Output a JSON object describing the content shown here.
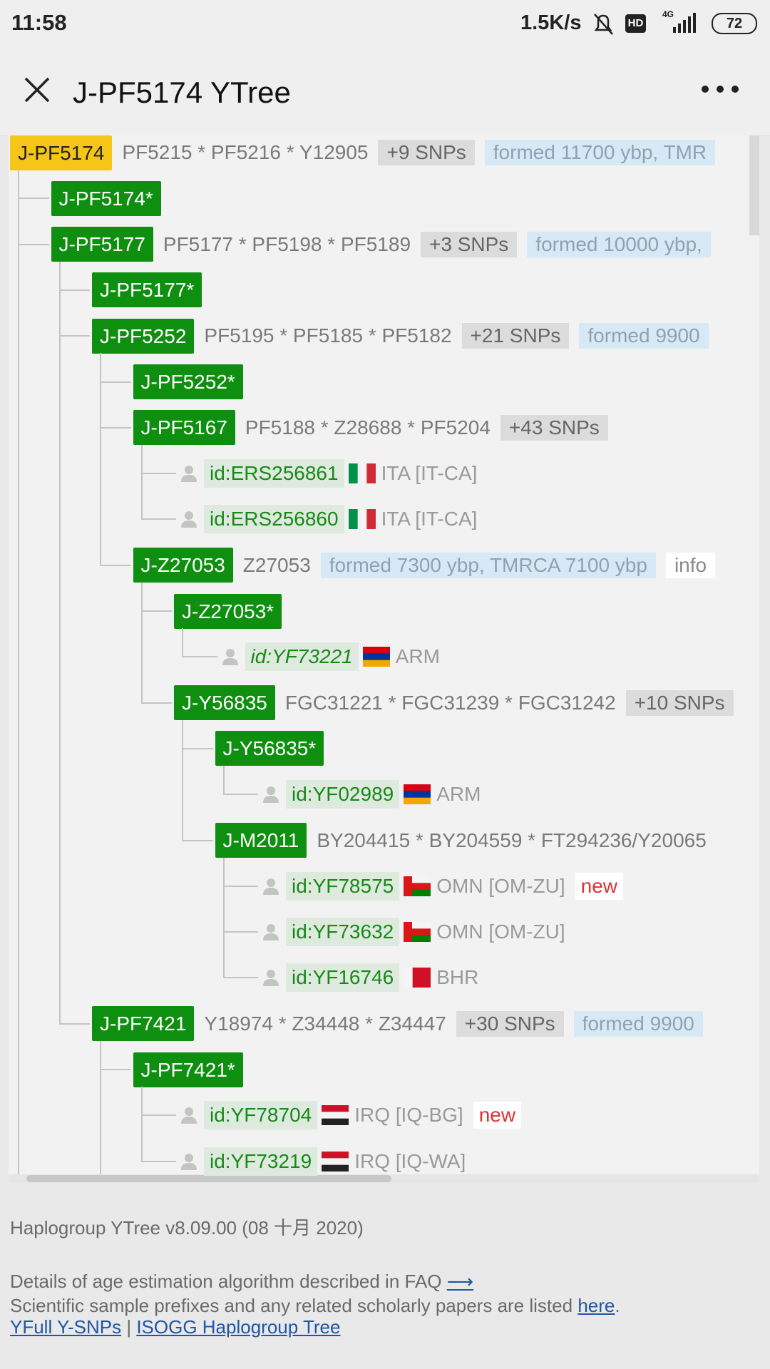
{
  "status_bar": {
    "time": "11:58",
    "speed": "1.5K/s",
    "hd": "HD",
    "network": "4G",
    "battery": "72"
  },
  "app_bar": {
    "title": "J-PF5174 YTree"
  },
  "tree": {
    "label": "J-PF5174",
    "highlight": true,
    "snps": "PF5215 * PF5216 * Y12905",
    "more": "+9 SNPs",
    "age": "formed 11700 ybp, TMR",
    "children": [
      {
        "label": "J-PF5174*"
      },
      {
        "label": "J-PF5177",
        "snps": "PF5177 * PF5198 * PF5189",
        "more": "+3 SNPs",
        "age": "formed 10000 ybp,",
        "children": [
          {
            "label": "J-PF5177*"
          },
          {
            "label": "J-PF5252",
            "snps": "PF5195 * PF5185 * PF5182",
            "more": "+21 SNPs",
            "age": "formed 9900",
            "children": [
              {
                "label": "J-PF5252*"
              },
              {
                "label": "J-PF5167",
                "snps": "PF5188 * Z28688 * PF5204",
                "more": "+43 SNPs",
                "children": [
                  {
                    "id": "id:ERS256861",
                    "flag": {
                      "dir": "v",
                      "colors": [
                        "#009246",
                        "#f4f4f4",
                        "#ce2b37"
                      ]
                    },
                    "country": "ITA [IT-CA]"
                  },
                  {
                    "id": "id:ERS256860",
                    "flag": {
                      "dir": "v",
                      "colors": [
                        "#009246",
                        "#f4f4f4",
                        "#ce2b37"
                      ]
                    },
                    "country": "ITA [IT-CA]"
                  }
                ]
              },
              {
                "label": "J-Z27053",
                "snps": "Z27053",
                "age": "formed 7300 ybp, TMRCA 7100 ybp",
                "info": "info",
                "children": [
                  {
                    "label": "J-Z27053*",
                    "children": [
                      {
                        "id": "id:YF73221",
                        "italic": true,
                        "flag": {
                          "dir": "h",
                          "colors": [
                            "#d90012",
                            "#0033a0",
                            "#f2a800"
                          ]
                        },
                        "country": "ARM"
                      }
                    ]
                  },
                  {
                    "label": "J-Y56835",
                    "snps": "FGC31221 * FGC31239 * FGC31242",
                    "more": "+10 SNPs",
                    "children": [
                      {
                        "label": "J-Y56835*",
                        "children": [
                          {
                            "id": "id:YF02989",
                            "flag": {
                              "dir": "h",
                              "colors": [
                                "#d90012",
                                "#0033a0",
                                "#f2a800"
                              ]
                            },
                            "country": "ARM"
                          }
                        ]
                      },
                      {
                        "label": "J-M2011",
                        "snps": "BY204415 * BY204559 * FT294236/Y20065",
                        "children": [
                          {
                            "id": "id:YF78575",
                            "flag": {
                              "dir": "h",
                              "hoist": "#db161b",
                              "colors": [
                                "#f4f4f4",
                                "#db161b",
                                "#008000"
                              ]
                            },
                            "country": "OMN [OM-ZU]",
                            "tag": "new"
                          },
                          {
                            "id": "id:YF73632",
                            "flag": {
                              "dir": "h",
                              "hoist": "#db161b",
                              "colors": [
                                "#f4f4f4",
                                "#db161b",
                                "#008000"
                              ]
                            },
                            "country": "OMN [OM-ZU]"
                          },
                          {
                            "id": "id:YF16746",
                            "flag": {
                              "dir": "v",
                              "colors": [
                                "#f4f4f4",
                                "#ce1126",
                                "#ce1126"
                              ]
                            },
                            "country": "BHR"
                          }
                        ]
                      }
                    ]
                  }
                ]
              }
            ]
          },
          {
            "label": "J-PF7421",
            "snps": "Y18974 * Z34448 * Z34447",
            "more": "+30 SNPs",
            "age": "formed 9900",
            "children": [
              {
                "label": "J-PF7421*",
                "children": [
                  {
                    "id": "id:YF78704",
                    "flag": {
                      "dir": "h",
                      "colors": [
                        "#ce1126",
                        "#f4f4f4",
                        "#222222"
                      ]
                    },
                    "country": "IRQ [IQ-BG]",
                    "tag": "new"
                  },
                  {
                    "id": "id:YF73219",
                    "flag": {
                      "dir": "h",
                      "colors": [
                        "#ce1126",
                        "#f4f4f4",
                        "#222222"
                      ]
                    },
                    "country": "IRQ [IQ-WA]"
                  }
                ]
              }
            ]
          }
        ]
      }
    ]
  },
  "footer": {
    "version": "Haplogroup YTree v8.09.00 (08 十月 2020)",
    "age_note": "Details of age estimation algorithm described in FAQ",
    "arrow": "⟶",
    "prefix_note": "Scientific sample prefixes and any related scholarly papers are listed",
    "prefix_link": "here",
    "prefix_end": ".",
    "link_1": "YFull Y-SNPs",
    "separator": "|",
    "link_2": "ISOGG Haplogroup Tree"
  }
}
